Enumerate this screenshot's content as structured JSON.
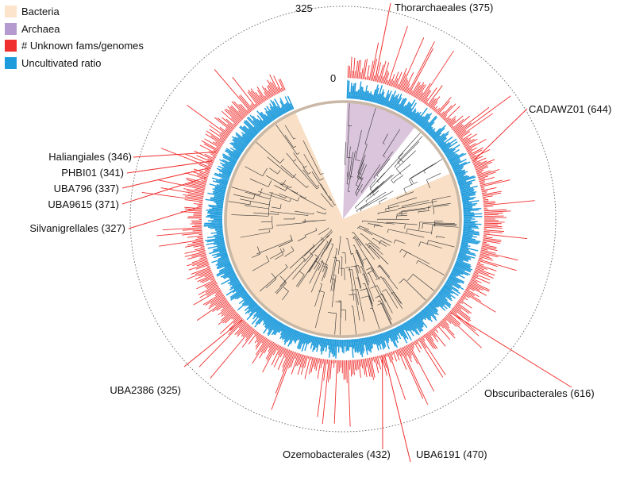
{
  "legend": {
    "items": [
      {
        "label": "Bacteria",
        "color": "#fbe3cc"
      },
      {
        "label": "Archaea",
        "color": "#b59acf"
      },
      {
        "label": "# Unknown fams/genomes",
        "color": "#f0302f"
      },
      {
        "label": "Uncultivated ratio",
        "color": "#1e9bdc"
      }
    ]
  },
  "colors": {
    "bacteria_fill": "#f8dfc6",
    "archaea_fill": "#dbc5dd",
    "unknown_bar": "#f0302f",
    "uncultivated_bar": "#1e9bdc",
    "branch_line": "#333333",
    "scale_circle": "#666666"
  },
  "scale": {
    "max_label": "325",
    "min_label": "0"
  },
  "annotations": [
    {
      "label": "Thorarchaeales (375)"
    },
    {
      "label": "CADAWZ01 (644)"
    },
    {
      "label": "Haliangiales (346)"
    },
    {
      "label": "PHBI01 (341)"
    },
    {
      "label": "UBA796 (337)"
    },
    {
      "label": "UBA9615 (371)"
    },
    {
      "label": "Silvanigrellales (327)"
    },
    {
      "label": "UBA2386 (325)"
    },
    {
      "label": "Obscuribacterales (616)"
    },
    {
      "label": "Ozemobacterales (432)"
    },
    {
      "label": "UBA6191 (470)"
    }
  ]
}
